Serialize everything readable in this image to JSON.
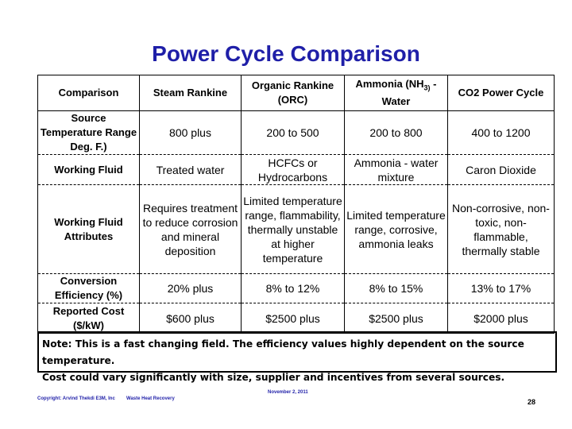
{
  "slide": {
    "title": "Power Cycle Comparison",
    "page_number": "28"
  },
  "table": {
    "headers": [
      {
        "pre": "Comparison"
      },
      {
        "pre": "Steam Rankine"
      },
      {
        "pre": "Organic Rankine (ORC)"
      },
      {
        "pre": "Ammonia (NH",
        "sub": "3)",
        "post": " - Water"
      },
      {
        "pre": "CO2 Power  Cycle"
      }
    ],
    "rows": [
      {
        "label": "Source Temperature Range Deg. F.)",
        "cells": [
          "800 plus",
          "200 to 500",
          "200 to 800",
          "400 to 1200"
        ]
      },
      {
        "label": "Working Fluid",
        "cells": [
          "Treated water",
          "HCFCs or Hydrocarbons",
          "Ammonia - water mixture",
          "Caron Dioxide"
        ]
      },
      {
        "label": "Working Fluid Attributes",
        "cells": [
          "Requires treatment to reduce corrosion and mineral deposition",
          "Limited temperature range, flammability, thermally unstable at higher temperature",
          "Limited temperature range, corrosive, ammonia leaks",
          "Non-corrosive, non-toxic, non-flammable, thermally stable"
        ]
      },
      {
        "label": "Conversion Efficiency (%)",
        "cells": [
          "20% plus",
          "8% to 12%",
          "8% to 15%",
          "13% to 17%"
        ]
      },
      {
        "label": "Reported Cost ($/kW)",
        "cells": [
          "$600 plus",
          "$2500 plus",
          "$2500 plus",
          "$2000 plus"
        ]
      }
    ]
  },
  "note": {
    "line1": "Note: This is a fast changing field.  The efficiency values highly dependent on the source temperature.",
    "line2": "Cost could vary significantly with size, supplier and incentives from several sources."
  },
  "footer": {
    "copyright": "Copyright: Arvind Thekdi E3M, Inc",
    "topic": "Waste Heat Recovery",
    "date": "November 2, 2011"
  }
}
